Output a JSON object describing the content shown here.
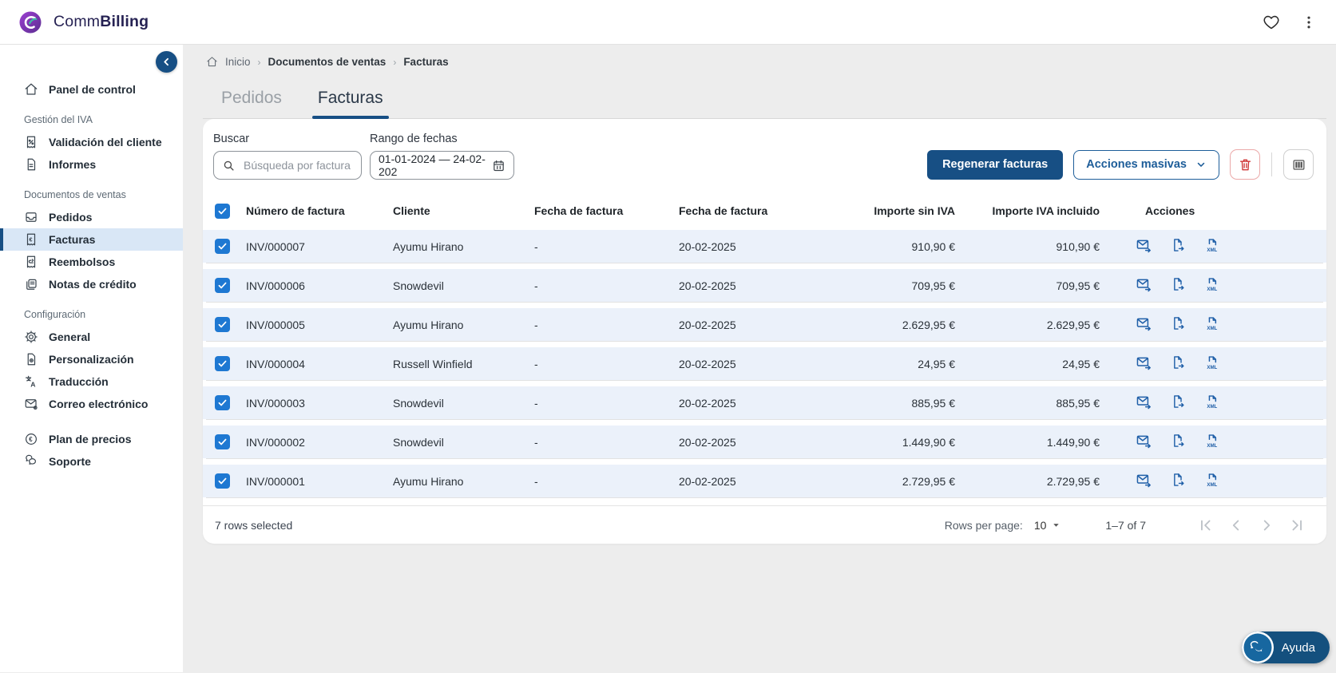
{
  "header": {
    "brand_comm": "Comm",
    "brand_billing": "Billing"
  },
  "sidebar": {
    "sections": [
      {
        "items": [
          {
            "icon": "home",
            "label": "Panel de control"
          }
        ]
      },
      {
        "title": "Gestión del IVA",
        "items": [
          {
            "icon": "receipt-percent",
            "label": "Validación del cliente"
          },
          {
            "icon": "file",
            "label": "Informes"
          }
        ]
      },
      {
        "title": "Documentos de ventas",
        "items": [
          {
            "icon": "inbox",
            "label": "Pedidos"
          },
          {
            "icon": "receipt-euro",
            "label": "Facturas",
            "active": true
          },
          {
            "icon": "receipt-refund",
            "label": "Reembolsos"
          },
          {
            "icon": "credit-note",
            "label": "Notas de crédito"
          }
        ]
      },
      {
        "title": "Configuración",
        "items": [
          {
            "icon": "gear",
            "label": "General"
          },
          {
            "icon": "file-gear",
            "label": "Personalización"
          },
          {
            "icon": "translate",
            "label": "Traducción"
          },
          {
            "icon": "mail-gear",
            "label": "Correo electrónico"
          }
        ]
      },
      {
        "items": [
          {
            "icon": "euro-circle",
            "label": "Plan de precios"
          },
          {
            "icon": "chat",
            "label": "Soporte"
          }
        ]
      }
    ]
  },
  "breadcrumb": {
    "home_label": "Inicio",
    "items": [
      "Documentos de ventas",
      "Facturas"
    ]
  },
  "tabs": [
    {
      "label": "Pedidos",
      "active": false
    },
    {
      "label": "Facturas",
      "active": true
    }
  ],
  "filters": {
    "search_label": "Buscar",
    "search_placeholder": "Búsqueda por factura, cl",
    "date_label": "Rango de fechas",
    "date_value": "01-01-2024 — 24-02-202"
  },
  "toolbar": {
    "regenerate_label": "Regenerar facturas",
    "bulk_actions_label": "Acciones masivas"
  },
  "table": {
    "columns": [
      "Número de factura",
      "Cliente",
      "Fecha de factura",
      "Fecha de factura",
      "Importe sin IVA",
      "Importe IVA incluido",
      "Acciones"
    ],
    "rows": [
      {
        "invoice": "INV/000007",
        "client": "Ayumu Hirano",
        "invoice_date": "-",
        "date2": "20-02-2025",
        "net": "910,90 €",
        "gross": "910,90 €"
      },
      {
        "invoice": "INV/000006",
        "client": "Snowdevil",
        "invoice_date": "-",
        "date2": "20-02-2025",
        "net": "709,95 €",
        "gross": "709,95 €"
      },
      {
        "invoice": "INV/000005",
        "client": "Ayumu Hirano",
        "invoice_date": "-",
        "date2": "20-02-2025",
        "net": "2.629,95 €",
        "gross": "2.629,95 €"
      },
      {
        "invoice": "INV/000004",
        "client": "Russell Winfield",
        "invoice_date": "-",
        "date2": "20-02-2025",
        "net": "24,95 €",
        "gross": "24,95 €"
      },
      {
        "invoice": "INV/000003",
        "client": "Snowdevil",
        "invoice_date": "-",
        "date2": "20-02-2025",
        "net": "885,95 €",
        "gross": "885,95 €"
      },
      {
        "invoice": "INV/000002",
        "client": "Snowdevil",
        "invoice_date": "-",
        "date2": "20-02-2025",
        "net": "1.449,90 €",
        "gross": "1.449,90 €"
      },
      {
        "invoice": "INV/000001",
        "client": "Ayumu Hirano",
        "invoice_date": "-",
        "date2": "20-02-2025",
        "net": "2.729,95 €",
        "gross": "2.729,95 €"
      }
    ],
    "all_selected": true
  },
  "footer": {
    "selected_text": "7 rows selected",
    "rows_per_page_label": "Rows per page:",
    "rows_per_page_value": "10",
    "range_text": "1–7 of 7"
  },
  "help": {
    "label": "Ayuda"
  },
  "colors": {
    "primary_navy": "#174f84",
    "outline_blue": "#1d5d99",
    "checkbox_blue": "#1e78d2",
    "action_icon_blue": "#1f5fa8",
    "row_background": "#ebf1fa",
    "danger_red": "#cf3535",
    "help_background": "#14507e",
    "brand_text": "#262253"
  }
}
